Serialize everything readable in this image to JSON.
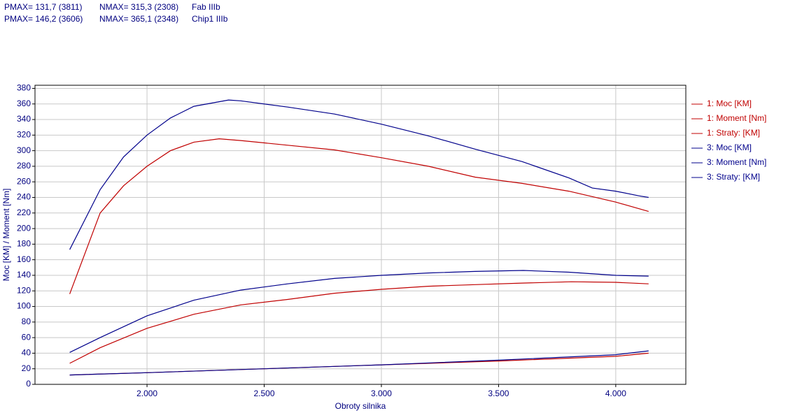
{
  "chart_data": {
    "type": "line",
    "header": [
      [
        "PMAX= 131,7 (3811)",
        "NMAX= 315,3 (2308)",
        "Fab IIIb"
      ],
      [
        "PMAX= 146,2 (3606)",
        "NMAX= 365,1 (2348)",
        "Chip1 IIIb"
      ]
    ],
    "xlabel": "Obroty silnika",
    "ylabel": "Moc [KM] / Moment [Nm]",
    "xlim": [
      1522,
      4299
    ],
    "ylim": [
      0,
      384
    ],
    "xticks": [
      {
        "value": 2000,
        "label": "2.000"
      },
      {
        "value": 2500,
        "label": "2.500"
      },
      {
        "value": 3000,
        "label": "3.000"
      },
      {
        "value": 3500,
        "label": "3.500"
      },
      {
        "value": 4000,
        "label": "4.000"
      }
    ],
    "yticks": [
      0,
      20,
      40,
      60,
      80,
      100,
      120,
      140,
      160,
      180,
      200,
      220,
      240,
      260,
      280,
      300,
      320,
      340,
      360,
      380
    ],
    "grid": true,
    "series": [
      {
        "name": "1: Moc [KM]",
        "color": "#c00000",
        "x": [
          1670,
          1800,
          2000,
          2200,
          2400,
          2600,
          2800,
          3000,
          3200,
          3400,
          3600,
          3811,
          4000,
          4140
        ],
        "values": [
          27,
          47,
          72,
          90,
          102,
          109,
          117,
          122,
          126,
          128,
          130,
          131.7,
          131,
          129
        ]
      },
      {
        "name": "1: Moment [Nm]",
        "color": "#c00000",
        "x": [
          1670,
          1800,
          1900,
          2000,
          2100,
          2200,
          2308,
          2400,
          2600,
          2800,
          3000,
          3200,
          3400,
          3600,
          3800,
          4000,
          4140
        ],
        "values": [
          116,
          220,
          255,
          280,
          300,
          311,
          315.3,
          313,
          307,
          301,
          291,
          280,
          266,
          258,
          248,
          234,
          222
        ]
      },
      {
        "name": "1: Straty: [KM]",
        "color": "#c00000",
        "x": [
          1670,
          2000,
          2500,
          3000,
          3500,
          4000,
          4140
        ],
        "values": [
          12,
          15,
          20,
          25,
          30,
          36,
          40
        ]
      },
      {
        "name": "3: Moc [KM]",
        "color": "#00008b",
        "x": [
          1670,
          1800,
          2000,
          2200,
          2400,
          2600,
          2800,
          3000,
          3200,
          3400,
          3606,
          3800,
          4000,
          4140
        ],
        "values": [
          41,
          60,
          88,
          108,
          121,
          129,
          136,
          140,
          143,
          145,
          146.2,
          144,
          140,
          139
        ]
      },
      {
        "name": "3: Moment [Nm]",
        "color": "#00008b",
        "x": [
          1670,
          1800,
          1900,
          2000,
          2100,
          2200,
          2348,
          2400,
          2600,
          2800,
          3000,
          3200,
          3400,
          3600,
          3800,
          3900,
          4000,
          4100,
          4140
        ],
        "values": [
          173,
          250,
          292,
          320,
          342,
          357,
          365.1,
          364,
          356,
          347,
          334,
          319,
          302,
          286,
          265,
          252,
          248,
          242,
          240
        ]
      },
      {
        "name": "3: Straty: [KM]",
        "color": "#00008b",
        "x": [
          1670,
          2000,
          2500,
          3000,
          3500,
          4000,
          4140
        ],
        "values": [
          12,
          15,
          20,
          25,
          31,
          38,
          43
        ]
      }
    ]
  }
}
